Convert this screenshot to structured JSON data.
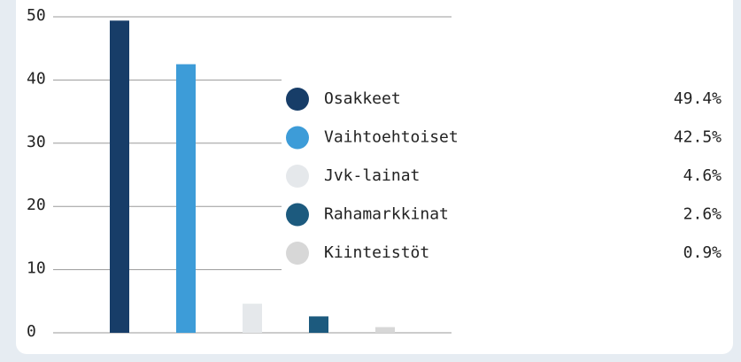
{
  "chart_data": {
    "type": "bar",
    "categories": [
      "Osakkeet",
      "Vaihtoehtoiset",
      "Jvk-lainat",
      "Rahamarkkinat",
      "Kiinteistöt"
    ],
    "values": [
      49.4,
      42.5,
      4.6,
      2.6,
      0.9
    ],
    "value_labels": [
      "49.4%",
      "42.5%",
      "4.6%",
      "2.6%",
      "0.9%"
    ],
    "colors": [
      "#173d68",
      "#3d9cd8",
      "#e5e8eb",
      "#1c5a7e",
      "#d7d7d7"
    ],
    "ylim": [
      0,
      50
    ],
    "yticks": [
      0,
      10,
      20,
      30,
      40,
      50
    ],
    "grid": true,
    "legend": "right"
  }
}
